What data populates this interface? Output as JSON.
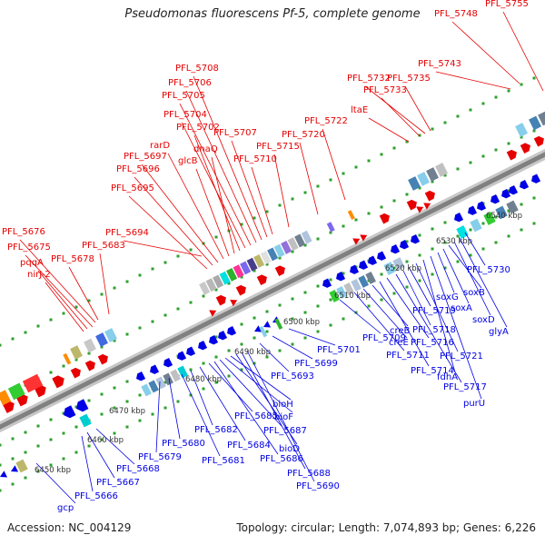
{
  "header": {
    "title": "Pseudomonas fluorescens Pf-5, complete genome"
  },
  "footer": {
    "accession": "Accession: NC_004129",
    "summary": "Topology: circular; Length: 7,074,893 bp; Genes: 6,226"
  },
  "colors": {
    "forward": "#e60000",
    "reverse": "#0000e6",
    "backbone": "#888888"
  },
  "ticks": [
    "6450 kbp",
    "6460 kbp",
    "6470 kbp",
    "6480 kbp",
    "6490 kbp",
    "6500 kbp",
    "6510 kbp",
    "6520 kbp",
    "6530 kbp",
    "6540 kbp"
  ],
  "forward_labels": [
    "PFL_5676",
    "PFL_5675",
    "pqqA",
    "PFL_5678",
    "nirJ-2",
    "PFL_5683",
    "PFL_5694",
    "PFL_5695",
    "PFL_5696",
    "PFL_5697",
    "rarD",
    "glcB",
    "dnaQ",
    "PFL_5702",
    "PFL_5704",
    "PFL_5705",
    "PFL_5706",
    "PFL_5708",
    "PFL_5707",
    "PFL_5710",
    "PFL_5715",
    "PFL_5720",
    "PFL_5722",
    "ltaE",
    "PFL_5733",
    "PFL_5732",
    "PFL_5735",
    "PFL_5743",
    "PFL_5748",
    "PFL_5755"
  ],
  "reverse_labels": [
    "gcp",
    "PFL_5666",
    "PFL_5667",
    "PFL_5668",
    "PFL_5679",
    "PFL_5680",
    "PFL_5681",
    "PFL_5682",
    "PFL_5684",
    "PFL_5685",
    "PFL_5686",
    "PFL_5687",
    "bioF",
    "bioH",
    "bioD",
    "PFL_5688",
    "PFL_5690",
    "PFL_5693",
    "PFL_5699",
    "PFL_5701",
    "PFL_5709",
    "PFL_5711",
    "creE",
    "creB",
    "PFL_5714",
    "PFL_5716",
    "PFL_5717",
    "PFL_5718",
    "PFL_5719",
    "PFL_5721",
    "fdhA",
    "purU",
    "soxG",
    "soxA",
    "soxB",
    "soxD",
    "glyA",
    "PFL_5730"
  ]
}
